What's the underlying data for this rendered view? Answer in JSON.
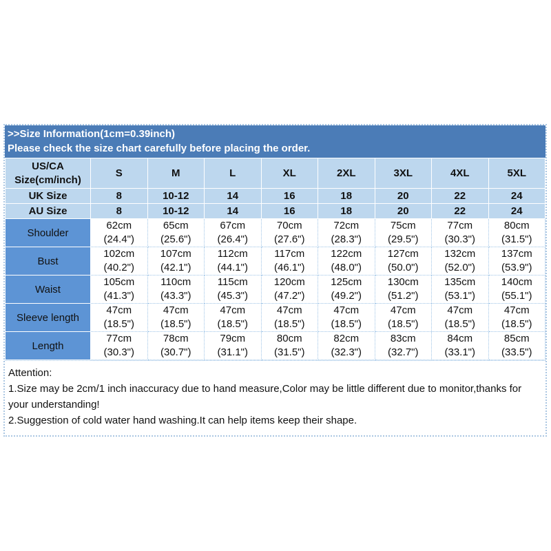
{
  "banner": {
    "line1": ">>Size Information(1cm=0.39inch)",
    "line2": "Please check the size chart carefully before placing the order."
  },
  "colors": {
    "banner_bg": "#4b7cb7",
    "header_cell_bg": "#bdd7ee",
    "label_cell_bg": "#5d94d5",
    "data_border": "#9dc3e6"
  },
  "chart_data": {
    "type": "table",
    "title": "Size Information(1cm=0.39inch)",
    "corner_label": "US/CA\nSize(cm/inch)",
    "size_headers": [
      "S",
      "M",
      "L",
      "XL",
      "2XL",
      "3XL",
      "4XL",
      "5XL"
    ],
    "uk_row": {
      "label": "UK Size",
      "values": [
        "8",
        "10-12",
        "14",
        "16",
        "18",
        "20",
        "22",
        "24"
      ]
    },
    "au_row": {
      "label": "AU Size",
      "values": [
        "8",
        "10-12",
        "14",
        "16",
        "18",
        "20",
        "22",
        "24"
      ]
    },
    "measurements": [
      {
        "label": "Shoulder",
        "values": [
          "62cm\n(24.4\")",
          "65cm\n(25.6\")",
          "67cm\n(26.4\")",
          "70cm\n(27.6\")",
          "72cm\n(28.3\")",
          "75cm\n(29.5\")",
          "77cm\n(30.3\")",
          "80cm\n(31.5\")"
        ]
      },
      {
        "label": "Bust",
        "values": [
          "102cm\n(40.2\")",
          "107cm\n(42.1\")",
          "112cm\n(44.1\")",
          "117cm\n(46.1\")",
          "122cm\n(48.0\")",
          "127cm\n(50.0\")",
          "132cm\n(52.0\")",
          "137cm\n(53.9\")"
        ]
      },
      {
        "label": "Waist",
        "values": [
          "105cm\n(41.3\")",
          "110cm\n(43.3\")",
          "115cm\n(45.3\")",
          "120cm\n(47.2\")",
          "125cm\n(49.2\")",
          "130cm\n(51.2\")",
          "135cm\n(53.1\")",
          "140cm\n(55.1\")"
        ]
      },
      {
        "label": "Sleeve length",
        "values": [
          "47cm\n(18.5\")",
          "47cm\n(18.5\")",
          "47cm\n(18.5\")",
          "47cm\n(18.5\")",
          "47cm\n(18.5\")",
          "47cm\n(18.5\")",
          "47cm\n(18.5\")",
          "47cm\n(18.5\")"
        ]
      },
      {
        "label": "Length",
        "values": [
          "77cm\n(30.3\")",
          "78cm\n(30.7\")",
          "79cm\n(31.1\")",
          "80cm\n(31.5\")",
          "82cm\n(32.3\")",
          "83cm\n(32.7\")",
          "84cm\n(33.1\")",
          "85cm\n(33.5\")"
        ]
      }
    ]
  },
  "attention": {
    "title": "Attention:",
    "lines": [
      "1.Size may be 2cm/1 inch inaccuracy due to hand measure,Color may be little different due to monitor,thanks for your understanding!",
      "2.Suggestion of cold water hand washing.It can help items keep their shape."
    ]
  }
}
